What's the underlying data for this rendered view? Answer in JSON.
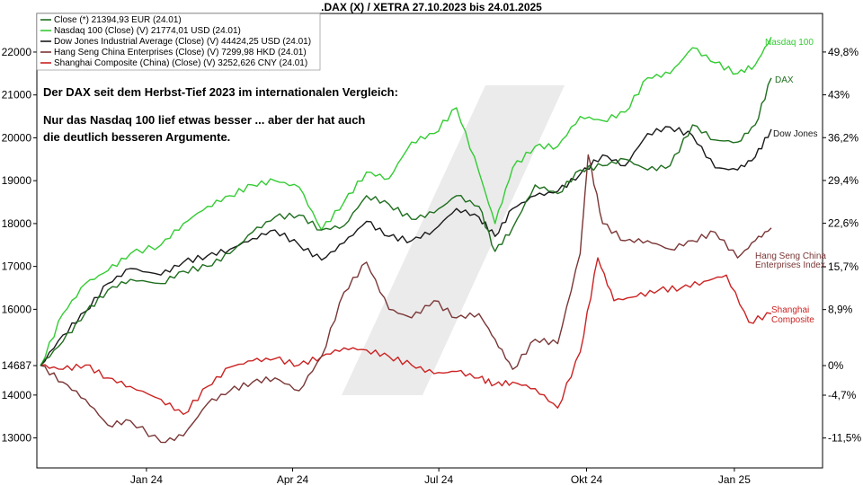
{
  "chart_data": {
    "type": "line",
    "title": ".DAX (X) / XETRA 27.10.2023 bis 24.01.2025",
    "x_ticks": [
      "Jan 24",
      "Apr 24",
      "Jul 24",
      "Okt 24",
      "Jan 25"
    ],
    "left_ticks": [
      "22000",
      "21000",
      "20000",
      "19000",
      "18000",
      "17000",
      "16000",
      "14687",
      "14000",
      "13000"
    ],
    "right_ticks": [
      "49,8%",
      "43%",
      "36,2%",
      "29,4%",
      "22,6%",
      "15,7%",
      "8,9%",
      "0%",
      "-4,7%",
      "-11,5%"
    ],
    "ylim_left": [
      12300,
      22900
    ],
    "y_base": 14687,
    "legend": [
      "Close (*) 21394,93 EUR (24.01)",
      "Nasdaq 100 (Close) (V) 21774,01 USD (24.01)",
      "Dow Jones Industrial Average (Close) (V) 44424,25 USD (24.01)",
      "Hang Seng China Enterprises (Close) (V) 7299,98 HKD (24.01)",
      "Shanghai Composite (China) (Close) (V) 3252,626 CNY (24.01)"
    ],
    "annotation": {
      "line1": "Der DAX seit dem Herbst-Tief 2023 im internationalen Vergleich:",
      "line2": "Nur das Nasdaq 100 lief etwas besser ... aber der hat auch",
      "line3": "die deutlich besseren Argumente."
    },
    "series": [
      {
        "name": "DAX",
        "color": "#1e6e1e",
        "label_lines": [
          "DAX"
        ],
        "x": [
          "2023-10-27",
          "2023-11-10",
          "2023-11-24",
          "2023-12-08",
          "2023-12-22",
          "2024-01-10",
          "2024-01-24",
          "2024-02-08",
          "2024-02-22",
          "2024-03-07",
          "2024-03-21",
          "2024-04-05",
          "2024-04-19",
          "2024-05-03",
          "2024-05-17",
          "2024-05-31",
          "2024-06-14",
          "2024-06-28",
          "2024-07-12",
          "2024-07-26",
          "2024-08-05",
          "2024-08-16",
          "2024-08-30",
          "2024-09-13",
          "2024-09-27",
          "2024-10-11",
          "2024-10-25",
          "2024-11-08",
          "2024-11-22",
          "2024-12-06",
          "2024-12-20",
          "2025-01-03",
          "2025-01-14",
          "2025-01-24"
        ],
        "values": [
          14687,
          15250,
          15920,
          16450,
          16700,
          16600,
          16890,
          17000,
          17300,
          17800,
          18150,
          18200,
          17850,
          17950,
          18650,
          18450,
          18100,
          18250,
          18650,
          18400,
          17350,
          17900,
          18900,
          18700,
          19250,
          19350,
          19500,
          19250,
          19350,
          20300,
          19950,
          19900,
          20300,
          21395
        ]
      },
      {
        "name": "Nasdaq 100",
        "color": "#33cc33",
        "label_lines": [
          "Nasdaq 100"
        ],
        "x": [
          "2023-10-27",
          "2023-11-10",
          "2023-11-24",
          "2023-12-08",
          "2023-12-22",
          "2024-01-10",
          "2024-01-24",
          "2024-02-08",
          "2024-02-22",
          "2024-03-07",
          "2024-03-21",
          "2024-04-05",
          "2024-04-19",
          "2024-05-03",
          "2024-05-17",
          "2024-05-31",
          "2024-06-14",
          "2024-06-28",
          "2024-07-12",
          "2024-07-26",
          "2024-08-05",
          "2024-08-16",
          "2024-08-30",
          "2024-09-13",
          "2024-09-27",
          "2024-10-11",
          "2024-10-25",
          "2024-11-08",
          "2024-11-22",
          "2024-12-06",
          "2024-12-20",
          "2025-01-03",
          "2025-01-14",
          "2025-01-24"
        ],
        "values": [
          14687,
          15900,
          16600,
          16900,
          17300,
          17500,
          18000,
          18400,
          18650,
          18900,
          19000,
          18850,
          17850,
          18500,
          19200,
          19050,
          19900,
          20100,
          20700,
          19200,
          18000,
          19300,
          19800,
          19800,
          20500,
          20400,
          20600,
          21400,
          21500,
          22100,
          21750,
          21500,
          21700,
          22350
        ]
      },
      {
        "name": "Dow Jones",
        "color": "#1a1a1a",
        "label_lines": [
          "Dow Jones"
        ],
        "x": [
          "2023-10-27",
          "2023-11-10",
          "2023-11-24",
          "2023-12-08",
          "2023-12-22",
          "2024-01-10",
          "2024-01-24",
          "2024-02-08",
          "2024-02-22",
          "2024-03-07",
          "2024-03-21",
          "2024-04-05",
          "2024-04-19",
          "2024-05-03",
          "2024-05-17",
          "2024-05-31",
          "2024-06-14",
          "2024-06-28",
          "2024-07-12",
          "2024-07-26",
          "2024-08-05",
          "2024-08-16",
          "2024-08-30",
          "2024-09-13",
          "2024-09-27",
          "2024-10-11",
          "2024-10-25",
          "2024-11-08",
          "2024-11-22",
          "2024-12-06",
          "2024-12-20",
          "2025-01-03",
          "2025-01-14",
          "2025-01-24"
        ],
        "values": [
          14687,
          15400,
          15950,
          16600,
          16950,
          16800,
          17100,
          17250,
          17400,
          17650,
          17850,
          17500,
          17150,
          17550,
          18050,
          17700,
          17600,
          17850,
          18350,
          18150,
          17700,
          18350,
          18650,
          18750,
          19150,
          19600,
          19350,
          20100,
          20250,
          20050,
          19300,
          19250,
          19550,
          20200
        ]
      },
      {
        "name": "Hang Seng China Enterprises",
        "color": "#7a3636",
        "label_lines": [
          "Hang Seng China",
          "Enterprises Index"
        ],
        "x": [
          "2023-10-27",
          "2023-11-10",
          "2023-11-24",
          "2023-12-08",
          "2023-12-22",
          "2024-01-10",
          "2024-01-24",
          "2024-02-08",
          "2024-02-22",
          "2024-03-07",
          "2024-03-21",
          "2024-04-05",
          "2024-04-19",
          "2024-05-03",
          "2024-05-17",
          "2024-05-31",
          "2024-06-14",
          "2024-06-28",
          "2024-07-12",
          "2024-07-26",
          "2024-08-05",
          "2024-08-16",
          "2024-08-30",
          "2024-09-13",
          "2024-09-27",
          "2024-10-02",
          "2024-10-11",
          "2024-10-25",
          "2024-11-08",
          "2024-11-22",
          "2024-12-06",
          "2024-12-20",
          "2025-01-03",
          "2025-01-14",
          "2025-01-24"
        ],
        "values": [
          14687,
          14300,
          13900,
          13300,
          13400,
          12900,
          13050,
          13800,
          14100,
          14300,
          14400,
          14100,
          14900,
          16400,
          17100,
          16000,
          15800,
          16200,
          15800,
          15900,
          15300,
          14600,
          15300,
          15200,
          17300,
          19600,
          18000,
          17600,
          17600,
          17400,
          17600,
          17800,
          17200,
          17600,
          17900
        ]
      },
      {
        "name": "Shanghai Composite",
        "color": "#cc2222",
        "label_lines": [
          "Shanghai",
          "Composite"
        ],
        "x": [
          "2023-10-27",
          "2023-11-10",
          "2023-11-24",
          "2023-12-08",
          "2023-12-22",
          "2024-01-10",
          "2024-01-24",
          "2024-02-08",
          "2024-02-22",
          "2024-03-07",
          "2024-03-21",
          "2024-04-05",
          "2024-04-19",
          "2024-05-03",
          "2024-05-17",
          "2024-05-31",
          "2024-06-14",
          "2024-06-28",
          "2024-07-12",
          "2024-07-26",
          "2024-08-05",
          "2024-08-16",
          "2024-08-30",
          "2024-09-13",
          "2024-09-27",
          "2024-10-08",
          "2024-10-18",
          "2024-11-01",
          "2024-11-15",
          "2024-11-29",
          "2024-12-13",
          "2024-12-27",
          "2025-01-10",
          "2025-01-24"
        ],
        "values": [
          14687,
          14600,
          14700,
          14400,
          14200,
          13900,
          13550,
          14200,
          14650,
          14800,
          14850,
          14700,
          14900,
          15100,
          15050,
          14900,
          14700,
          14500,
          14550,
          14400,
          14250,
          14300,
          14150,
          13700,
          15000,
          17200,
          16200,
          16300,
          16450,
          16500,
          16650,
          16800,
          15700,
          15900
        ]
      }
    ],
    "colors": {
      "background": "#ffffff",
      "plot_border": "#000000",
      "watermark": "#e6e6e6"
    }
  }
}
